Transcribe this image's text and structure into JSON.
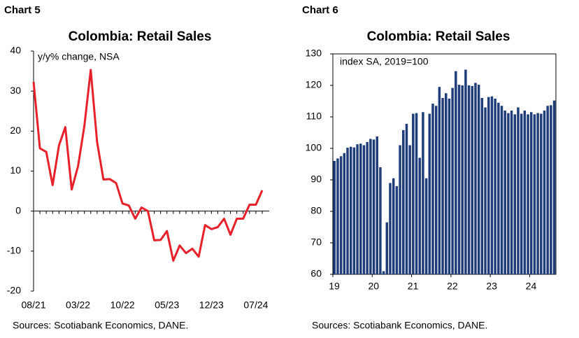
{
  "chart_data": [
    {
      "type": "line",
      "chart_label": "Chart 5",
      "title": "Colombia: Retail Sales",
      "subtitle": "y/y% change, NSA",
      "source": "Sources: Scotiabank Economics, DANE.",
      "categories": [
        "08/21",
        null,
        null,
        null,
        null,
        null,
        null,
        "03/22",
        null,
        null,
        null,
        null,
        null,
        null,
        "10/22",
        null,
        null,
        null,
        null,
        null,
        null,
        "05/23",
        null,
        null,
        null,
        null,
        null,
        null,
        "12/23",
        null,
        null,
        null,
        null,
        null,
        null,
        "07/24",
        null
      ],
      "series": [
        {
          "name": "y/y% change",
          "color": "#e8202a",
          "values": [
            32.3,
            15.7,
            14.8,
            6.5,
            16.4,
            21,
            5.4,
            11.2,
            21.3,
            35.3,
            17.3,
            7.9,
            8,
            7,
            1.9,
            1.4,
            -1.9,
            0.9,
            0,
            -7.3,
            -7.2,
            -5,
            -12.4,
            -8.6,
            -10.5,
            -9.4,
            -11.4,
            -3.5,
            -4.5,
            -4,
            -1.9,
            -5.9,
            -1.9,
            -1.9,
            1.6,
            1.6,
            5.2
          ]
        }
      ],
      "ylim": [
        -20,
        40
      ],
      "yticks": [
        -20,
        -10,
        0,
        10,
        20,
        30,
        40
      ]
    },
    {
      "type": "bar",
      "chart_label": "Chart 6",
      "title": "Colombia: Retail Sales",
      "subtitle": "index SA, 2019=100",
      "source": "Sources: Scotiabank Economics, DANE.",
      "categories": [
        "19",
        null,
        null,
        null,
        null,
        null,
        null,
        null,
        null,
        null,
        null,
        null,
        "20",
        null,
        null,
        null,
        null,
        null,
        null,
        null,
        null,
        null,
        null,
        null,
        "21",
        null,
        null,
        null,
        null,
        null,
        null,
        null,
        null,
        null,
        null,
        null,
        "22",
        null,
        null,
        null,
        null,
        null,
        null,
        null,
        null,
        null,
        null,
        null,
        "23",
        null,
        null,
        null,
        null,
        null,
        null,
        null,
        null,
        null,
        null,
        null,
        "24",
        null,
        null,
        null,
        null,
        null,
        null,
        null
      ],
      "series": [
        {
          "name": "index",
          "color": "#1f3d7a",
          "values": [
            96,
            96.8,
            97.5,
            98.5,
            100.2,
            100.5,
            100.3,
            101.3,
            101.5,
            101,
            102,
            103,
            102.8,
            103.8,
            94,
            61,
            76.5,
            89,
            90.5,
            88,
            101,
            105.8,
            107.8,
            101,
            111,
            111.2,
            97,
            111.5,
            90.5,
            111,
            114.2,
            113.5,
            119.5,
            116,
            117.5,
            115.8,
            119.2,
            124.5,
            120.2,
            120,
            125,
            120,
            119.8,
            120.8,
            120.2,
            116,
            113,
            116.3,
            116.5,
            115.8,
            114.5,
            113.5,
            112,
            111.2,
            112,
            110.8,
            113,
            111,
            112,
            110.8,
            111.5,
            110.8,
            111.2,
            111,
            112,
            113.5,
            113.7,
            115.2
          ]
        }
      ],
      "ylim": [
        60,
        130
      ],
      "yticks": [
        60,
        70,
        80,
        90,
        100,
        110,
        120,
        130
      ]
    }
  ]
}
